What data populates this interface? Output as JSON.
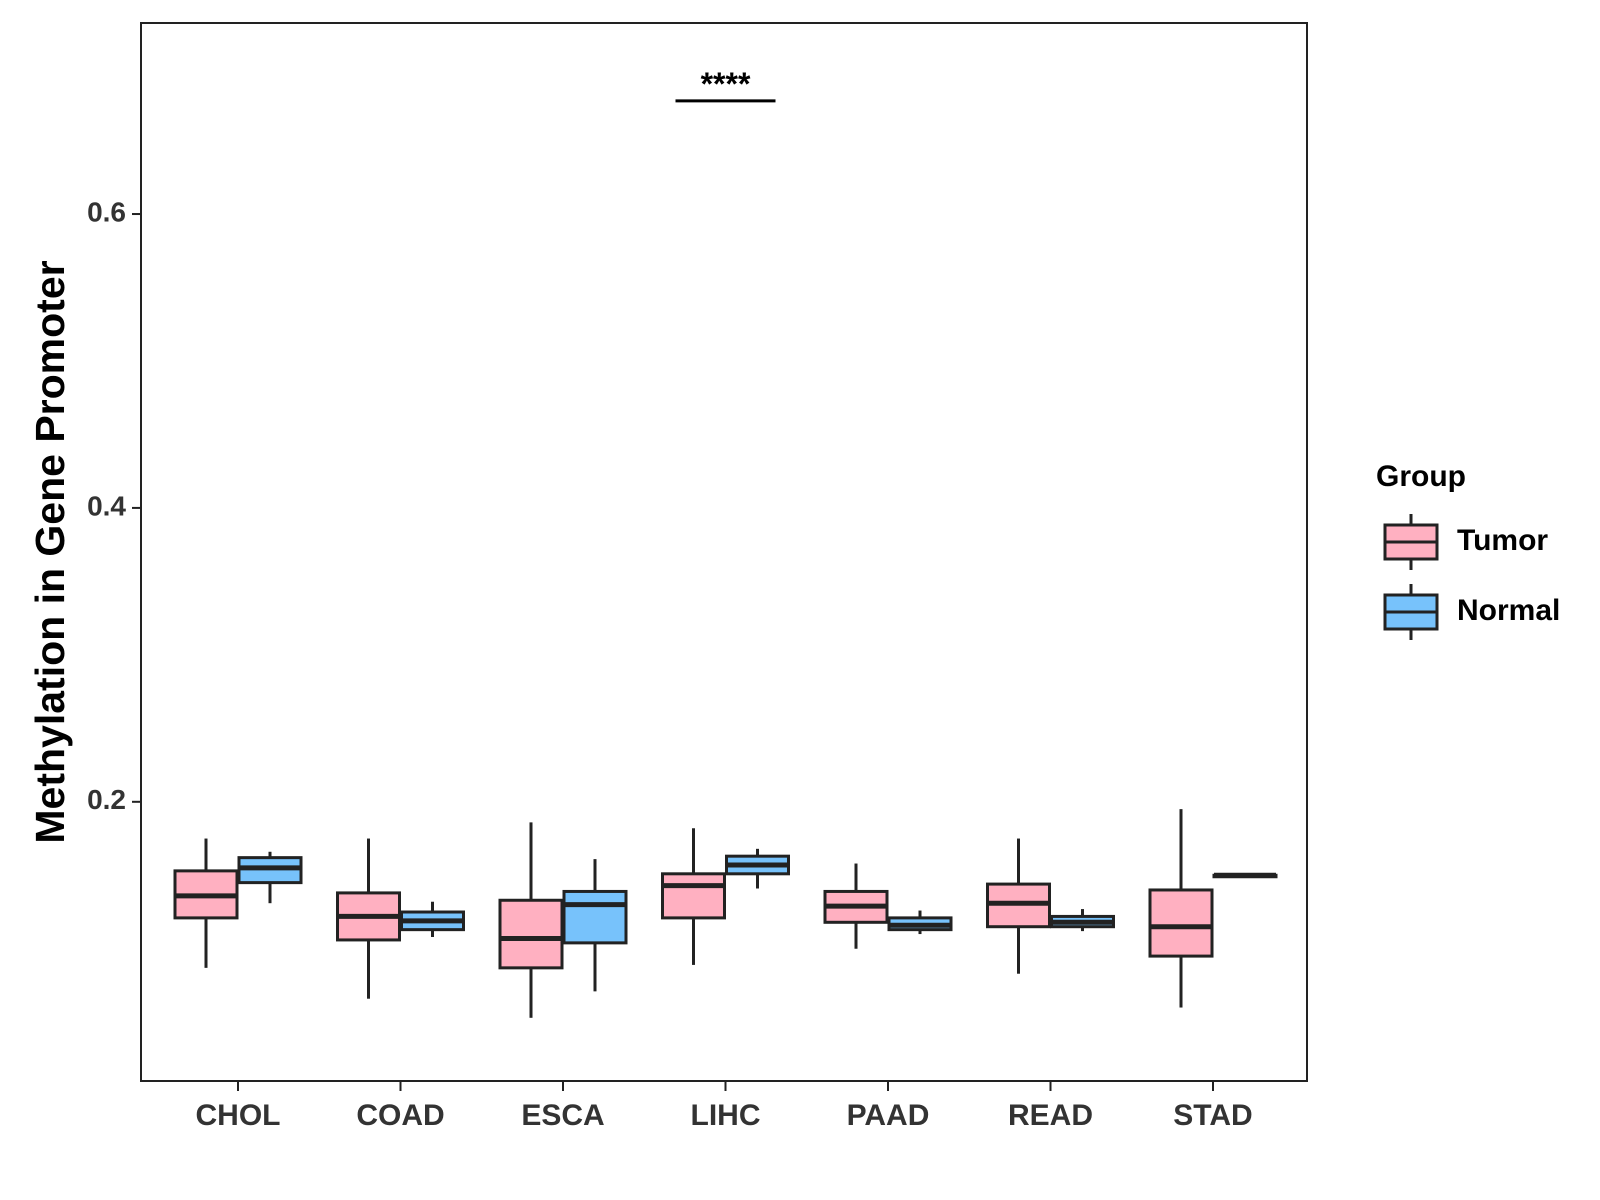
{
  "chart_data": {
    "type": "boxplot",
    "title": "",
    "xlabel": "",
    "ylabel": "Methylation in Gene Promoter",
    "ylim": [
      0.01,
      0.73
    ],
    "yticks": [
      0.2,
      0.4,
      0.6
    ],
    "ytick_labels": [
      "0.2",
      "0.4",
      "0.6"
    ],
    "grid": false,
    "legend_position": "right",
    "legend": {
      "title": "Group",
      "entries": [
        {
          "name": "Tumor",
          "color": "#FFB0C1"
        },
        {
          "name": "Normal",
          "color": "#77C2FB"
        }
      ]
    },
    "categories": [
      "CHOL",
      "COAD",
      "ESCA",
      "LIHC",
      "PAAD",
      "READ",
      "STAD"
    ],
    "series": [
      {
        "name": "Tumor",
        "color": "#FFB0C1",
        "boxes": [
          {
            "min": 0.087,
            "q1": 0.121,
            "median": 0.136,
            "q3": 0.153,
            "max": 0.175
          },
          {
            "min": 0.066,
            "q1": 0.106,
            "median": 0.122,
            "q3": 0.138,
            "max": 0.175
          },
          {
            "min": 0.053,
            "q1": 0.087,
            "median": 0.107,
            "q3": 0.133,
            "max": 0.186
          },
          {
            "min": 0.089,
            "q1": 0.121,
            "median": 0.143,
            "q3": 0.151,
            "max": 0.182
          },
          {
            "min": 0.1,
            "q1": 0.118,
            "median": 0.129,
            "q3": 0.139,
            "max": 0.158
          },
          {
            "min": 0.083,
            "q1": 0.115,
            "median": 0.131,
            "q3": 0.144,
            "max": 0.175
          },
          {
            "min": 0.06,
            "q1": 0.095,
            "median": 0.115,
            "q3": 0.14,
            "max": 0.195
          }
        ]
      },
      {
        "name": "Normal",
        "color": "#77C2FB",
        "boxes": [
          {
            "min": 0.131,
            "q1": 0.145,
            "median": 0.155,
            "q3": 0.162,
            "max": 0.166
          },
          {
            "min": 0.108,
            "q1": 0.113,
            "median": 0.119,
            "q3": 0.125,
            "max": 0.132
          },
          {
            "min": 0.071,
            "q1": 0.104,
            "median": 0.13,
            "q3": 0.139,
            "max": 0.161
          },
          {
            "min": 0.141,
            "q1": 0.151,
            "median": 0.157,
            "q3": 0.163,
            "max": 0.168
          },
          {
            "min": 0.11,
            "q1": 0.113,
            "median": 0.116,
            "q3": 0.121,
            "max": 0.126
          },
          {
            "min": 0.112,
            "q1": 0.115,
            "median": 0.118,
            "q3": 0.122,
            "max": 0.127
          },
          {
            "min": 0.149,
            "q1": 0.149,
            "median": 0.15,
            "q3": 0.15,
            "max": 0.15
          }
        ]
      }
    ],
    "annotations": [
      {
        "category": "LIHC",
        "text": "****",
        "y": 0.677
      }
    ]
  }
}
